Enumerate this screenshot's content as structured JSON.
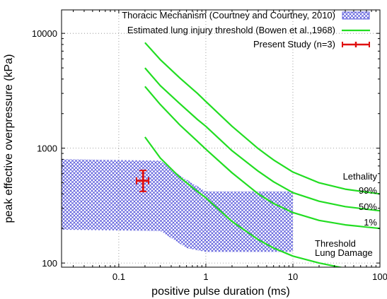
{
  "chart_data": {
    "type": "line",
    "xlabel": "positive pulse duration (ms)",
    "ylabel": "peak effective overpressure (kPa)",
    "x_scale": "log",
    "y_scale": "log",
    "xlim": [
      0.022,
      100
    ],
    "ylim": [
      92,
      16000
    ],
    "x_ticks": [
      0.1,
      1,
      10,
      100
    ],
    "x_tick_labels": [
      "0.1",
      "1",
      "10",
      "100"
    ],
    "y_ticks": [
      100,
      1000,
      10000
    ],
    "y_tick_labels": [
      "100",
      "1000",
      "10000"
    ],
    "grid": true,
    "legend_position": "top-right",
    "legend": [
      {
        "label": "Thoracic Mechanism (Courtney and Courtney, 2010)",
        "style": "hatched-area",
        "color": "#4a4ad8"
      },
      {
        "label": "Estimated lung injury threshold (Bowen et al.,1968)",
        "style": "line",
        "color": "#22dd22"
      },
      {
        "label": "Present Study (n=3)",
        "style": "errorbar",
        "color": "#e01010"
      }
    ],
    "thoracic_region": {
      "upper": [
        [
          0.022,
          800
        ],
        [
          0.3,
          780
        ],
        [
          0.5,
          580
        ],
        [
          1.0,
          420
        ],
        [
          10.0,
          420
        ]
      ],
      "lower": [
        [
          0.022,
          195
        ],
        [
          0.3,
          190
        ],
        [
          0.6,
          135
        ],
        [
          1.0,
          125
        ],
        [
          10.0,
          125
        ]
      ]
    },
    "bowen_curves": [
      {
        "label": "99%",
        "x": [
          0.2,
          0.3,
          0.5,
          0.8,
          1,
          2,
          4,
          6,
          10,
          20,
          40,
          100
        ],
        "y": [
          8300,
          5900,
          4100,
          3000,
          2550,
          1550,
          990,
          790,
          620,
          500,
          440,
          400
        ]
      },
      {
        "label": "50%",
        "x": [
          0.2,
          0.3,
          0.5,
          0.8,
          1,
          2,
          4,
          6,
          10,
          20,
          40,
          100
        ],
        "y": [
          5000,
          3500,
          2450,
          1780,
          1550,
          950,
          630,
          510,
          410,
          345,
          310,
          285
        ]
      },
      {
        "label": "1%",
        "x": [
          0.2,
          0.3,
          0.5,
          0.8,
          1,
          2,
          4,
          6,
          10,
          20,
          40,
          100
        ],
        "y": [
          3450,
          2400,
          1600,
          1150,
          980,
          610,
          400,
          330,
          275,
          235,
          215,
          200
        ]
      },
      {
        "label": "Threshold",
        "x": [
          0.2,
          0.3,
          0.5,
          0.8,
          1,
          2,
          4,
          6,
          10,
          20,
          40
        ],
        "y": [
          1250,
          820,
          560,
          420,
          370,
          230,
          160,
          135,
          115,
          100,
          90
        ]
      }
    ],
    "present_study": {
      "x": 0.19,
      "y": 520,
      "x_err": [
        0.16,
        0.22
      ],
      "y_err": [
        420,
        640
      ]
    },
    "annotations": {
      "lethality": "Lethality",
      "p99": "99%",
      "p50": "50%",
      "p1": "1%",
      "threshold_line1": "Threshold",
      "threshold_line2": "Lung Damage"
    }
  }
}
